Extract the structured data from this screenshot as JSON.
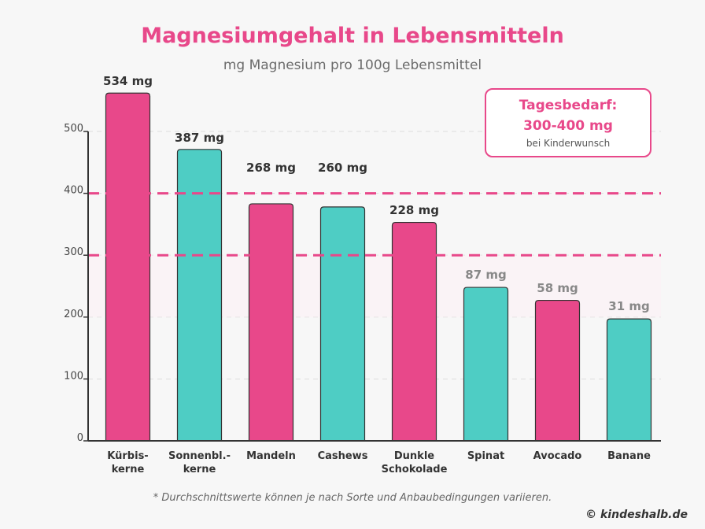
{
  "header": {
    "title": "Magnesiumgehalt in Lebensmitteln",
    "subtitle": "mg Magnesium pro 100g Lebensmittel"
  },
  "daily_need": {
    "label": "Tagesbedarf:",
    "value": "300-400 mg",
    "note": "bei Kinderwunsch"
  },
  "chart_data": {
    "type": "bar",
    "categories": [
      [
        "Kürbis-",
        "kerne"
      ],
      [
        "Sonnenbl.-",
        "kerne"
      ],
      [
        "Mandeln"
      ],
      [
        "Cashews"
      ],
      [
        "Dunkle",
        "Schokolade"
      ],
      [
        "Spinat"
      ],
      [
        "Avocado"
      ],
      [
        "Banane"
      ]
    ],
    "values": [
      534,
      387,
      268,
      260,
      228,
      87,
      58,
      31
    ],
    "data_labels": [
      "534 mg",
      "387 mg",
      "268 mg",
      "260 mg",
      "228 mg",
      "87 mg",
      "58 mg",
      "31 mg"
    ],
    "bar_heights_on_axis": [
      562,
      471,
      383,
      378,
      353,
      248,
      227,
      197
    ],
    "y_ticks": [
      0,
      100,
      200,
      300,
      400,
      500
    ],
    "ylim": [
      0,
      500
    ],
    "grid": true,
    "reference_lines": [
      300,
      400
    ],
    "reference_band": [
      200,
      300
    ],
    "colors": {
      "pink": "#e8488a",
      "teal": "#4ecdc4",
      "axis": "#333333",
      "label_dark": "#333333",
      "label_muted": "#888888"
    }
  },
  "footer": {
    "footnote": "* Durchschnittswerte können je nach Sorte und Anbaubedingungen variieren.",
    "copyright": "© kindeshalb.de"
  }
}
